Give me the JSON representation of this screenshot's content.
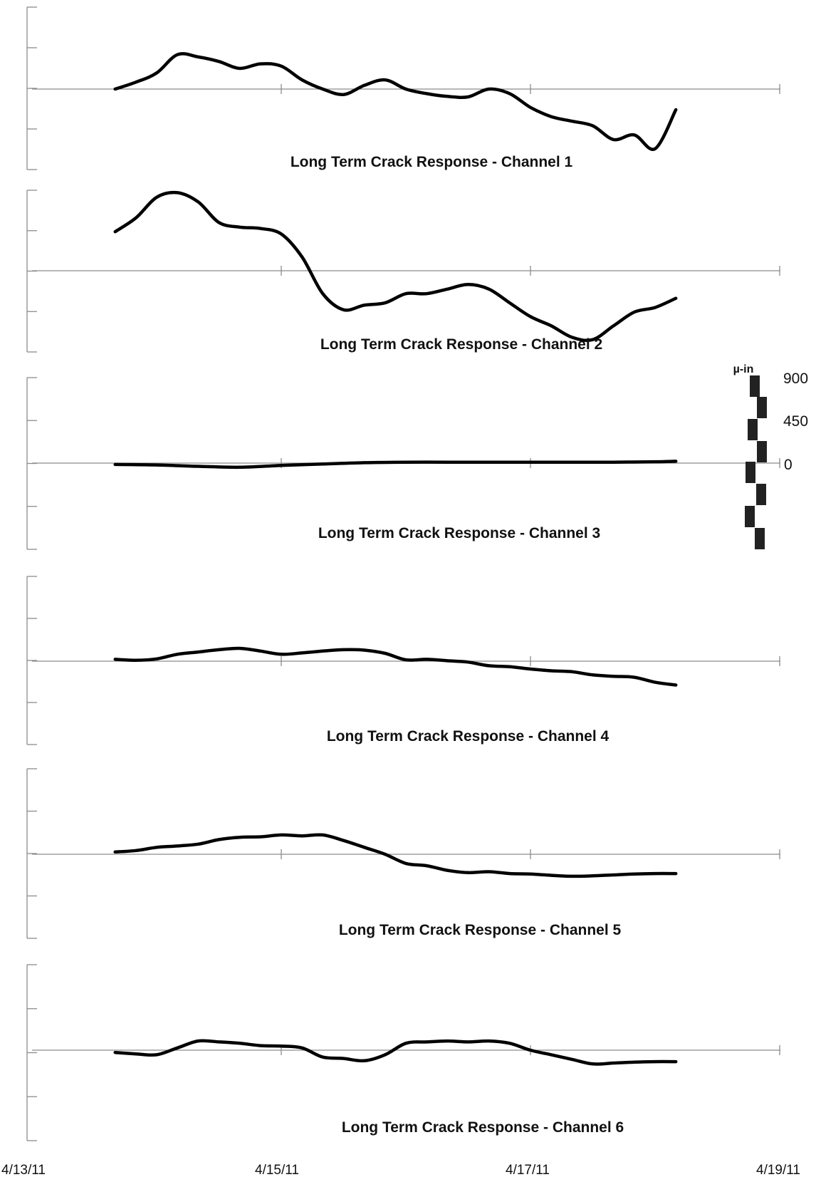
{
  "chart_data": {
    "type": "line",
    "x_range": [
      "4/13/11",
      "4/19/11"
    ],
    "x_tick_labels": [
      "4/13/11",
      "4/15/11",
      "4/17/11",
      "4/19/11"
    ],
    "scale_legend": {
      "unit": "µ-in",
      "labels": [
        "900",
        "450",
        "0"
      ]
    },
    "panels": [
      {
        "title": "Long Term Crack Response - Channel 1",
        "x": [
          "4/13/11 16:00",
          "4/13/11 20:00",
          "4/14/11 00:00",
          "4/14/11 04:00",
          "4/14/11 08:00",
          "4/14/11 12:00",
          "4/14/11 16:00",
          "4/14/11 20:00",
          "4/15/11 00:00",
          "4/15/11 04:00",
          "4/15/11 08:00",
          "4/15/11 12:00",
          "4/15/11 16:00",
          "4/15/11 20:00",
          "4/16/11 00:00",
          "4/16/11 04:00",
          "4/16/11 08:00",
          "4/16/11 12:00",
          "4/16/11 16:00",
          "4/16/11 20:00",
          "4/17/11 00:00",
          "4/17/11 04:00",
          "4/17/11 08:00",
          "4/17/11 12:00",
          "4/17/11 16:00",
          "4/17/11 20:00",
          "4/18/11 00:00",
          "4/18/11 04:00"
        ],
        "values": [
          0,
          150,
          350,
          750,
          700,
          600,
          450,
          550,
          500,
          200,
          0,
          -120,
          80,
          200,
          0,
          -100,
          -160,
          -170,
          0,
          -100,
          -400,
          -600,
          -700,
          -800,
          -1100,
          -1000,
          -1300,
          -450
        ]
      },
      {
        "title": "Long Term Crack Response - Channel 2",
        "x": [
          "4/13/11 16:00",
          "4/13/11 20:00",
          "4/14/11 00:00",
          "4/14/11 04:00",
          "4/14/11 08:00",
          "4/14/11 12:00",
          "4/14/11 16:00",
          "4/14/11 20:00",
          "4/15/11 00:00",
          "4/15/11 04:00",
          "4/15/11 08:00",
          "4/15/11 12:00",
          "4/15/11 16:00",
          "4/15/11 20:00",
          "4/16/11 00:00",
          "4/16/11 04:00",
          "4/16/11 08:00",
          "4/16/11 12:00",
          "4/16/11 16:00",
          "4/16/11 20:00",
          "4/17/11 00:00",
          "4/17/11 04:00",
          "4/17/11 08:00",
          "4/17/11 12:00",
          "4/17/11 16:00",
          "4/17/11 20:00",
          "4/18/11 00:00",
          "4/18/11 04:00"
        ],
        "values": [
          850,
          1150,
          1600,
          1700,
          1500,
          1050,
          950,
          920,
          800,
          300,
          -500,
          -850,
          -750,
          -700,
          -500,
          -500,
          -400,
          -300,
          -400,
          -700,
          -1000,
          -1200,
          -1450,
          -1500,
          -1200,
          -900,
          -800,
          -600
        ]
      },
      {
        "title": "Long Term Crack Response - Channel 3",
        "x": [
          "4/13/11 16:00",
          "4/14/11 00:00",
          "4/14/11 08:00",
          "4/14/11 16:00",
          "4/15/11 00:00",
          "4/15/11 08:00",
          "4/15/11 16:00",
          "4/16/11 00:00",
          "4/16/11 08:00",
          "4/16/11 16:00",
          "4/17/11 00:00",
          "4/17/11 08:00",
          "4/17/11 16:00",
          "4/18/11 00:00",
          "4/18/11 04:00"
        ],
        "values": [
          -30,
          -40,
          -70,
          -90,
          -50,
          -20,
          10,
          20,
          20,
          20,
          20,
          20,
          20,
          30,
          40
        ]
      },
      {
        "title": "Long Term Crack Response - Channel 4",
        "x": [
          "4/13/11 16:00",
          "4/13/11 20:00",
          "4/14/11 00:00",
          "4/14/11 04:00",
          "4/14/11 08:00",
          "4/14/11 12:00",
          "4/14/11 16:00",
          "4/14/11 20:00",
          "4/15/11 00:00",
          "4/15/11 04:00",
          "4/15/11 08:00",
          "4/15/11 12:00",
          "4/15/11 16:00",
          "4/15/11 20:00",
          "4/16/11 00:00",
          "4/16/11 04:00",
          "4/16/11 08:00",
          "4/16/11 12:00",
          "4/16/11 16:00",
          "4/16/11 20:00",
          "4/17/11 00:00",
          "4/17/11 04:00",
          "4/17/11 08:00",
          "4/17/11 12:00",
          "4/17/11 16:00",
          "4/17/11 20:00",
          "4/18/11 00:00",
          "4/18/11 04:00"
        ],
        "values": [
          40,
          20,
          50,
          150,
          200,
          250,
          280,
          220,
          150,
          180,
          220,
          250,
          240,
          170,
          30,
          40,
          10,
          -20,
          -100,
          -120,
          -170,
          -210,
          -230,
          -300,
          -330,
          -350,
          -460,
          -520
        ]
      },
      {
        "title": "Long Term Crack Response - Channel 5",
        "x": [
          "4/13/11 16:00",
          "4/13/11 20:00",
          "4/14/11 00:00",
          "4/14/11 04:00",
          "4/14/11 08:00",
          "4/14/11 12:00",
          "4/14/11 16:00",
          "4/14/11 20:00",
          "4/15/11 00:00",
          "4/15/11 04:00",
          "4/15/11 08:00",
          "4/15/11 12:00",
          "4/15/11 16:00",
          "4/15/11 20:00",
          "4/16/11 00:00",
          "4/16/11 04:00",
          "4/16/11 08:00",
          "4/16/11 12:00",
          "4/16/11 16:00",
          "4/16/11 20:00",
          "4/17/11 00:00",
          "4/17/11 04:00",
          "4/17/11 08:00",
          "4/17/11 12:00",
          "4/17/11 16:00",
          "4/17/11 20:00",
          "4/18/11 00:00",
          "4/18/11 04:00"
        ],
        "values": [
          50,
          80,
          150,
          180,
          220,
          320,
          370,
          380,
          420,
          400,
          420,
          300,
          150,
          0,
          -200,
          -250,
          -350,
          -400,
          -380,
          -420,
          -430,
          -460,
          -480,
          -470,
          -450,
          -430,
          -420,
          -420
        ]
      },
      {
        "title": "Long Term Crack Response - Channel 6",
        "x": [
          "4/13/11 16:00",
          "4/13/11 20:00",
          "4/14/11 00:00",
          "4/14/11 04:00",
          "4/14/11 08:00",
          "4/14/11 12:00",
          "4/14/11 16:00",
          "4/14/11 20:00",
          "4/15/11 00:00",
          "4/15/11 04:00",
          "4/15/11 08:00",
          "4/15/11 12:00",
          "4/15/11 16:00",
          "4/15/11 20:00",
          "4/16/11 00:00",
          "4/16/11 04:00",
          "4/16/11 08:00",
          "4/16/11 12:00",
          "4/16/11 16:00",
          "4/16/11 20:00",
          "4/17/11 00:00",
          "4/17/11 04:00",
          "4/17/11 08:00",
          "4/17/11 12:00",
          "4/17/11 16:00",
          "4/17/11 20:00",
          "4/18/11 00:00",
          "4/18/11 04:00"
        ],
        "values": [
          -50,
          -80,
          -100,
          50,
          200,
          180,
          150,
          100,
          90,
          50,
          -150,
          -180,
          -230,
          -100,
          150,
          180,
          200,
          180,
          200,
          150,
          0,
          -100,
          -200,
          -300,
          -280,
          -260,
          -250,
          -250
        ]
      }
    ]
  }
}
